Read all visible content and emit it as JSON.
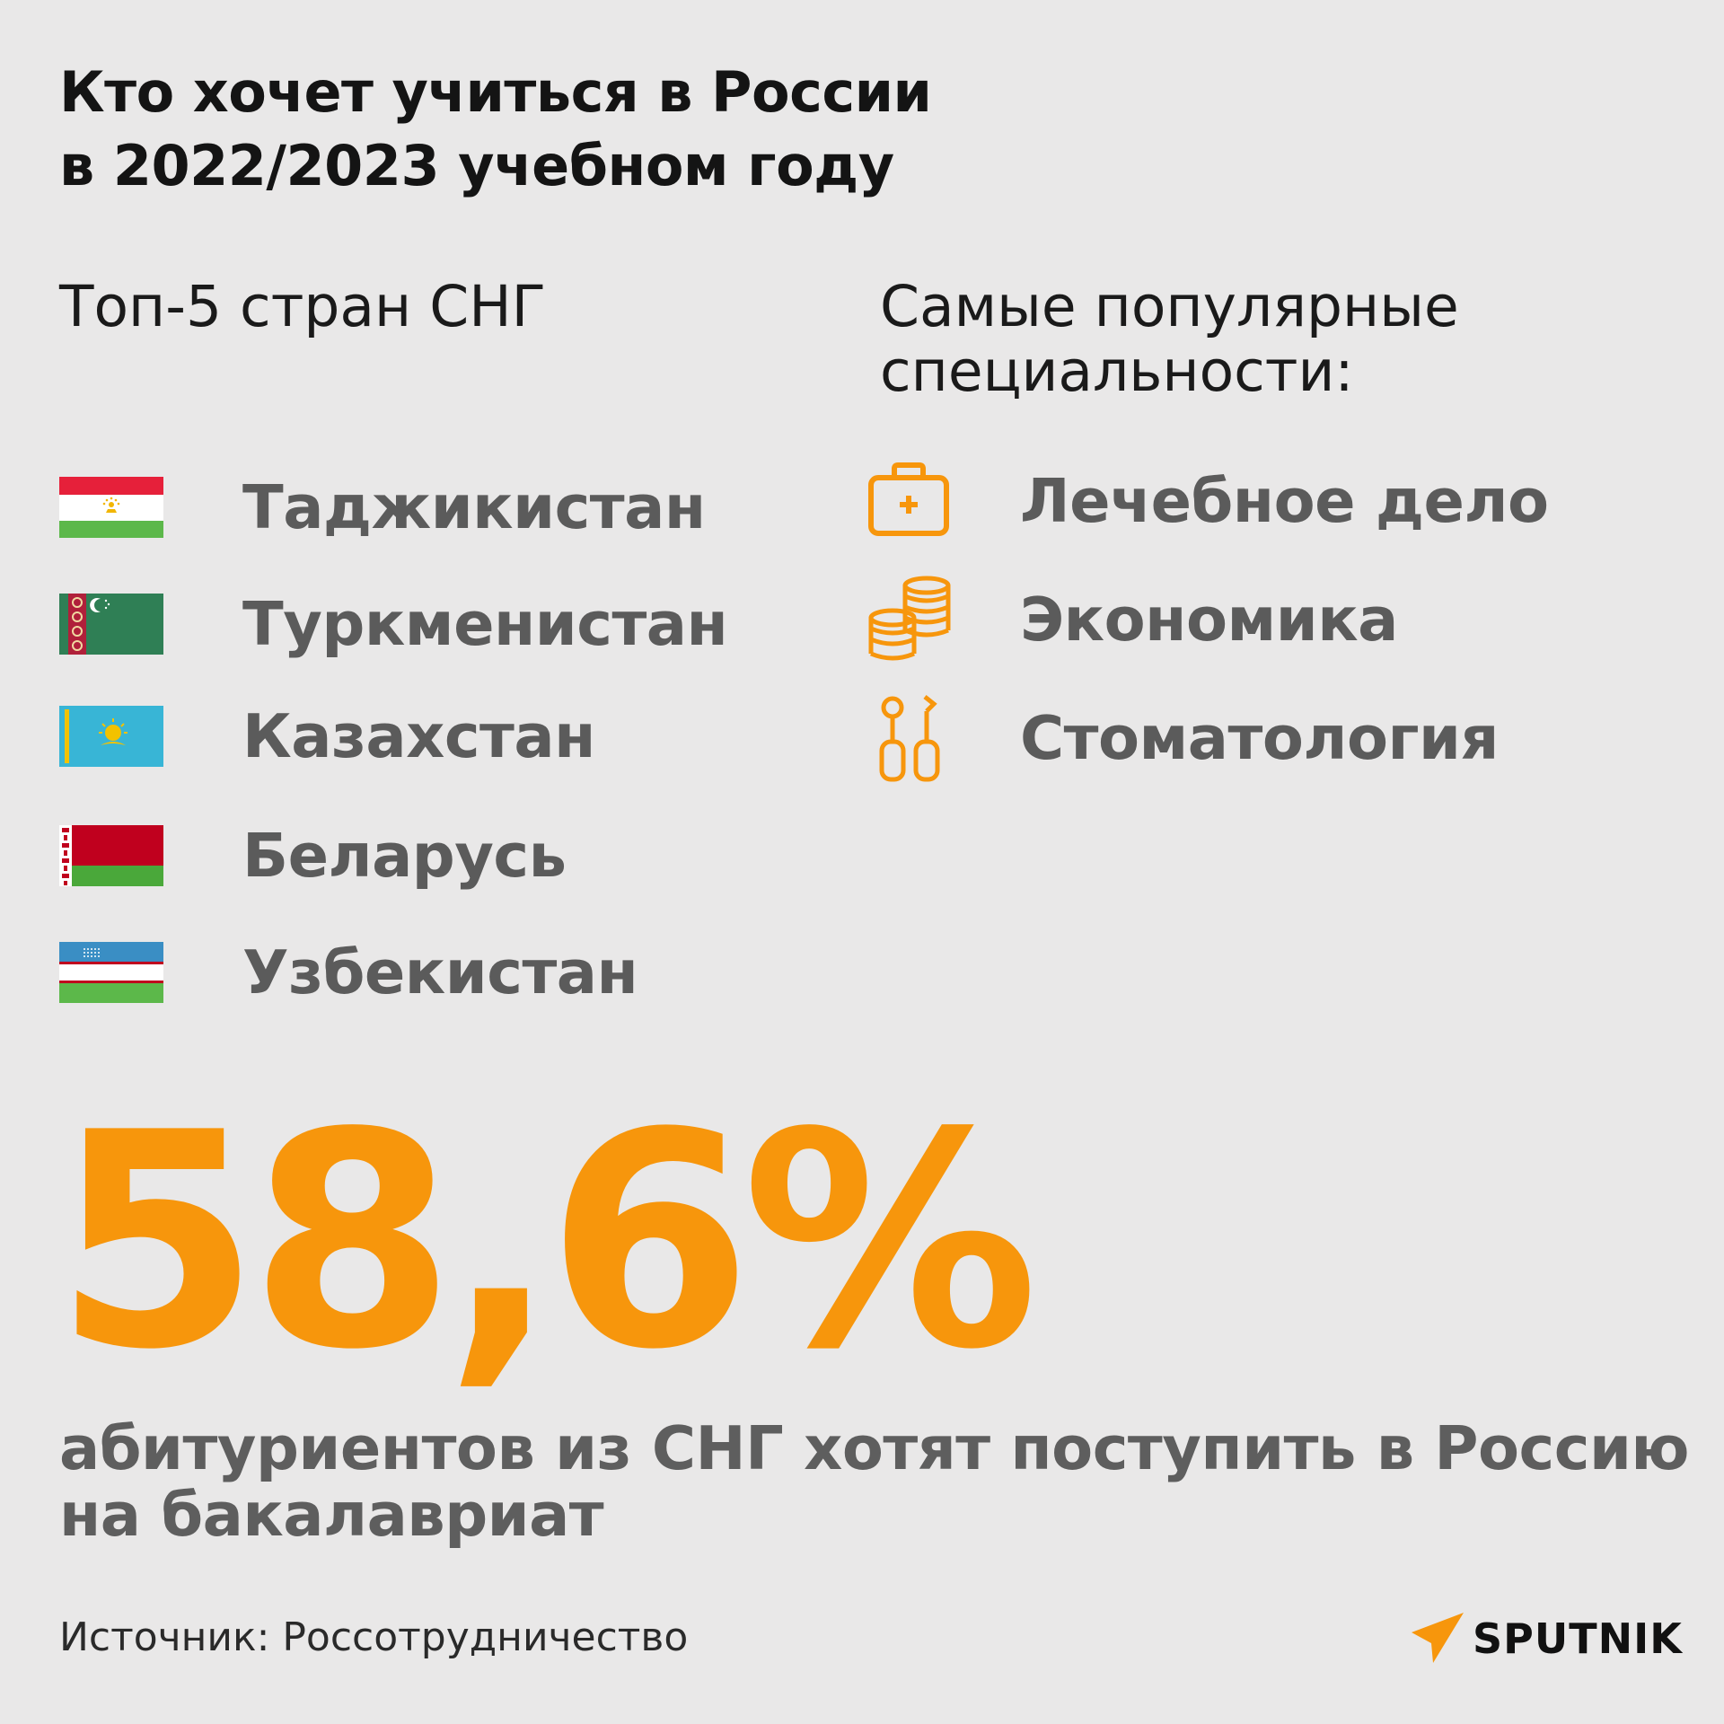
{
  "title": {
    "line1": "Кто хочет учиться в России",
    "line2": "в 2022/2023 учебном году"
  },
  "countries": {
    "heading": "Топ-5 стран СНГ",
    "items": [
      {
        "label": "Таджикистан",
        "flag": "tajikistan-flag"
      },
      {
        "label": "Туркменистан",
        "flag": "turkmenistan-flag"
      },
      {
        "label": "Казахстан",
        "flag": "kazakhstan-flag"
      },
      {
        "label": "Беларусь",
        "flag": "belarus-flag"
      },
      {
        "label": "Узбекистан",
        "flag": "uzbekistan-flag"
      }
    ]
  },
  "specialties": {
    "heading_line1": "Самые популярные",
    "heading_line2": "специальности:",
    "items": [
      {
        "label": "Лечебное дело",
        "icon": "first-aid-kit-icon"
      },
      {
        "label": "Экономика",
        "icon": "coin-stack-icon"
      },
      {
        "label": "Стоматология",
        "icon": "dental-tools-icon"
      }
    ]
  },
  "stat": {
    "value": "58,6%",
    "description": "абитуриентов из СНГ хотят поступить в Россию на бакалавриат"
  },
  "footer": {
    "source": "Источник: Россотрудничество",
    "brand": "SPUTNIK"
  },
  "colors": {
    "accent": "#f7960c",
    "background": "#e9e8e8",
    "label_gray": "#5b5b5b"
  }
}
